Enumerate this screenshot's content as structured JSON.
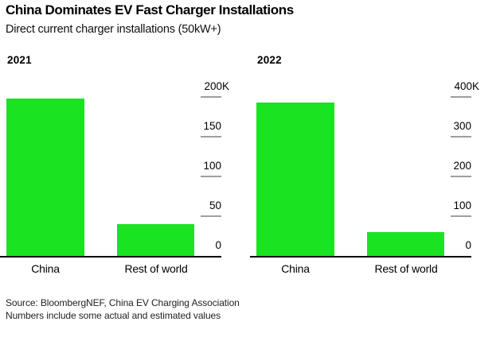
{
  "header": {
    "title": "China Dominates EV Fast Charger Installations",
    "subtitle": "Direct current charger installations (50kW+)"
  },
  "footer": {
    "source": "Source: BloombergNEF, China EV Charging Association",
    "note": "Numbers include some actual and estimated values"
  },
  "colors": {
    "bar_green": "#1ae322",
    "tick_dash": "#9e9e9e",
    "axis": "#000000",
    "background": "#ffffff"
  },
  "chart_data": [
    {
      "type": "bar",
      "title": "2021",
      "categories": [
        "China",
        "Rest of world"
      ],
      "values": [
        198000,
        40000
      ],
      "ylim": [
        0,
        200000
      ],
      "yticks": [
        {
          "label": "200K",
          "value": 200000
        },
        {
          "label": "150",
          "value": 150000
        },
        {
          "label": "100",
          "value": 100000
        },
        {
          "label": "50",
          "value": 50000
        },
        {
          "label": "0",
          "value": 0
        }
      ],
      "axis_side": "right",
      "grid": false,
      "legend": false,
      "bar_color": "#1ae322"
    },
    {
      "type": "bar",
      "title": "2022",
      "categories": [
        "China",
        "Rest of world"
      ],
      "values": [
        387000,
        61000
      ],
      "ylim": [
        0,
        400000
      ],
      "yticks": [
        {
          "label": "400K",
          "value": 400000
        },
        {
          "label": "300",
          "value": 300000
        },
        {
          "label": "200",
          "value": 200000
        },
        {
          "label": "100",
          "value": 100000
        },
        {
          "label": "0",
          "value": 0
        }
      ],
      "axis_side": "right",
      "grid": false,
      "legend": false,
      "bar_color": "#1ae322"
    }
  ]
}
